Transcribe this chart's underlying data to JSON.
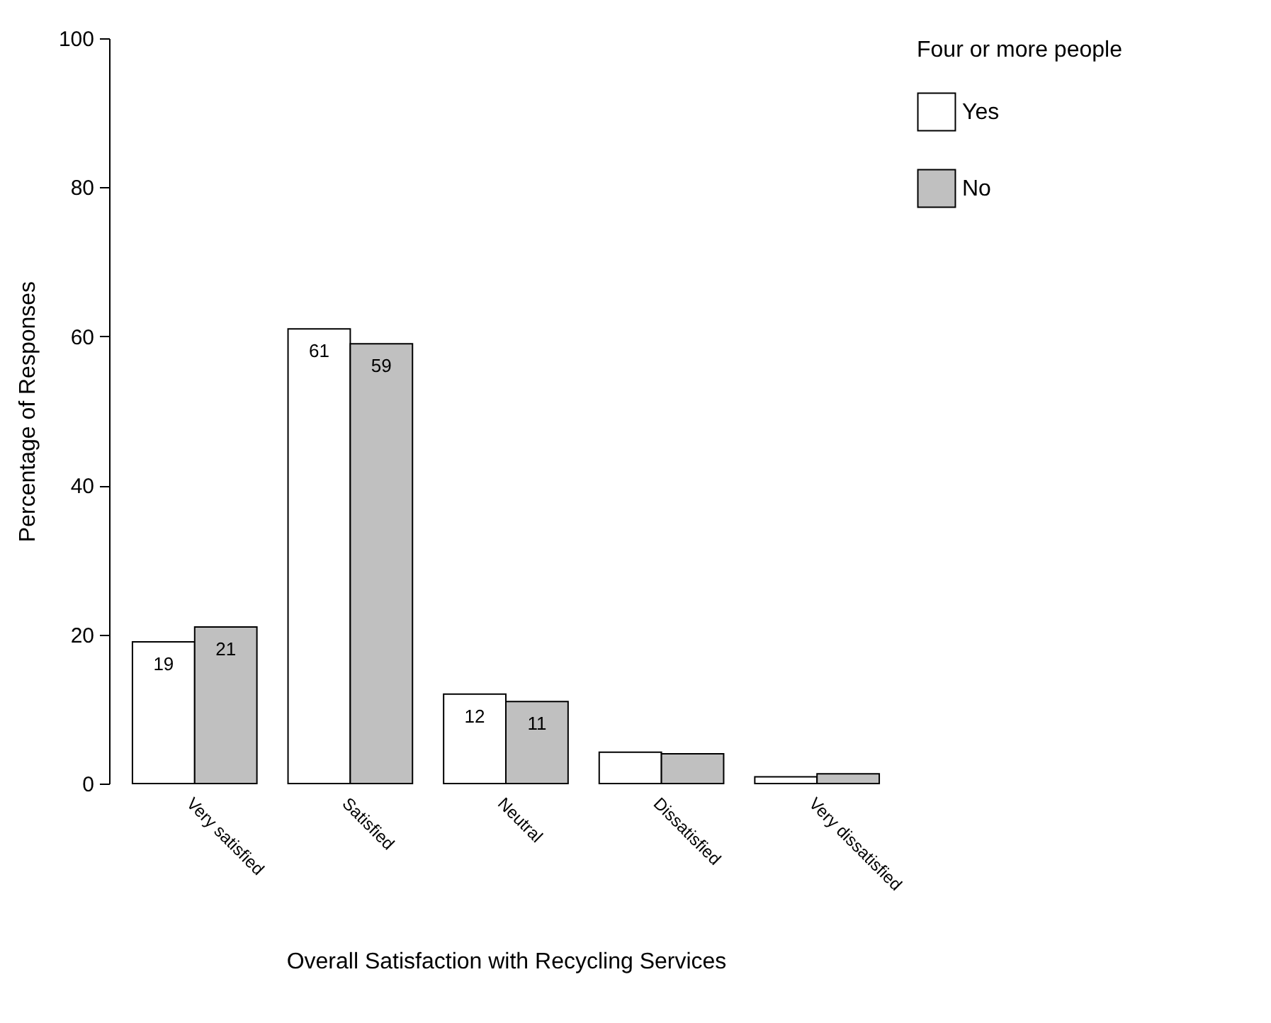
{
  "chart_data": {
    "type": "bar",
    "xlabel": "Overall Satisfaction with Recycling Services",
    "ylabel": "Percentage of Responses",
    "legend_title": "Four or more people",
    "categories": [
      "Very satisfied",
      "Satisfied",
      "Neutral",
      "Dissatisfied",
      "Very dissatisfied"
    ],
    "series": [
      {
        "name": "Yes",
        "color": "#ffffff",
        "values": [
          19,
          61,
          12,
          4.2,
          0.9
        ],
        "value_labels": [
          "19",
          "61",
          "12",
          null,
          null
        ]
      },
      {
        "name": "No",
        "color": "#c0c0c0",
        "values": [
          21,
          59,
          11,
          4.0,
          1.3
        ],
        "value_labels": [
          "21",
          "59",
          "11",
          null,
          null
        ]
      }
    ],
    "ylim": [
      0,
      100
    ],
    "yticks": [
      0,
      20,
      40,
      60,
      80,
      100
    ],
    "grid": false,
    "legend": "right"
  }
}
